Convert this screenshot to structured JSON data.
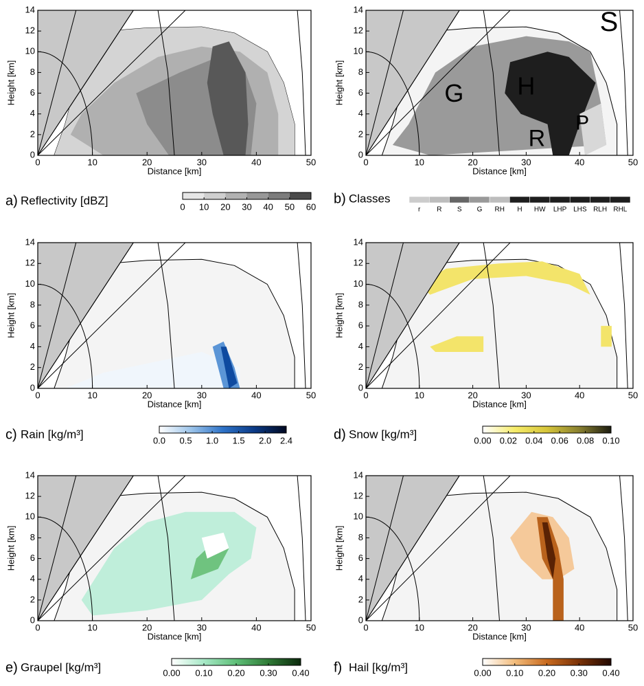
{
  "chart_data": [
    {
      "type": "contour",
      "label": "a)",
      "title": "Reflectivity [dBZ]",
      "xlabel": "Distance [km]",
      "ylabel": "Height [km]",
      "xlim": [
        0,
        50
      ],
      "xticks": [
        0,
        10,
        20,
        30,
        40,
        50
      ],
      "ylim": [
        0,
        14
      ],
      "yticks": [
        0,
        2,
        4,
        6,
        8,
        10,
        12,
        14
      ],
      "colorbar": {
        "discrete": true,
        "lim": [
          0,
          60
        ],
        "ticks": [
          0,
          10,
          20,
          30,
          40,
          50,
          60
        ],
        "colors": [
          "#e6e6e6",
          "#cfcfcf",
          "#b2b2b2",
          "#989898",
          "#7c7c7c",
          "#4a4a4a"
        ]
      }
    },
    {
      "type": "contour",
      "label": "b)",
      "title": "Classes",
      "xlabel": "Distance [km]",
      "ylabel": "Height [km]",
      "xlim": [
        0,
        50
      ],
      "xticks": [
        0,
        10,
        20,
        30,
        40,
        50
      ],
      "ylim": [
        0,
        14
      ],
      "yticks": [
        0,
        2,
        4,
        6,
        8,
        10,
        12,
        14
      ],
      "annotations": [
        "S",
        "G",
        "H",
        "R",
        "P"
      ],
      "colorbar": {
        "categories": [
          "r",
          "R",
          "S",
          "G",
          "RH",
          "H",
          "HW",
          "LHP",
          "LHS",
          "RLH",
          "RHL"
        ],
        "colors": [
          "#cccccc",
          "#bdbdbd",
          "#666666",
          "#999999",
          "#bdbdbd",
          "#1e1e1e",
          "#1e1e1e",
          "#1e1e1e",
          "#1e1e1e",
          "#1e1e1e",
          "#1e1e1e"
        ]
      }
    },
    {
      "type": "contour",
      "label": "c)",
      "title": "Rain [kg/m³]",
      "xlabel": "Distance [km]",
      "ylabel": "Height [km]",
      "xlim": [
        0,
        50
      ],
      "xticks": [
        0,
        10,
        20,
        30,
        40,
        50
      ],
      "ylim": [
        0,
        14
      ],
      "yticks": [
        0,
        2,
        4,
        6,
        8,
        10,
        12,
        14
      ],
      "colorbar": {
        "lim": [
          0,
          2.4
        ],
        "ticks": [
          {
            "value": 0,
            "label": "0.0"
          },
          {
            "value": 0.5,
            "label": "0.5"
          },
          {
            "value": 1,
            "label": "1.0"
          },
          {
            "value": 1.5,
            "label": "1.5"
          },
          {
            "value": 2,
            "label": "2.0"
          },
          2.4
        ],
        "colors": [
          "#ffffff",
          "#9cc4ea",
          "#2e73c8",
          "#0b3a86",
          "#000820"
        ]
      }
    },
    {
      "type": "contour",
      "label": "d)",
      "title": "Snow [kg/m³]",
      "xlabel": "Distance [km]",
      "ylabel": "Height [km]",
      "xlim": [
        0,
        50
      ],
      "xticks": [
        0,
        10,
        20,
        30,
        40,
        50
      ],
      "ylim": [
        0,
        14
      ],
      "yticks": [
        0,
        2,
        4,
        6,
        8,
        10,
        12,
        14
      ],
      "colorbar": {
        "lim": [
          0,
          0.1
        ],
        "ticks": [
          {
            "value": 0,
            "label": "0.00"
          },
          {
            "value": 0.02,
            "label": "0.02"
          },
          {
            "value": 0.04,
            "label": "0.04"
          },
          {
            "value": 0.06,
            "label": "0.06"
          },
          {
            "value": 0.08,
            "label": "0.08"
          },
          {
            "value": 0.1,
            "label": "0.10"
          }
        ],
        "colors": [
          "#ffffff",
          "#f6ec6a",
          "#d6c53a",
          "#8a8130",
          "#1c1c10"
        ]
      }
    },
    {
      "type": "contour",
      "label": "e)",
      "title": "Graupel [kg/m³]",
      "xlabel": "Distance [km]",
      "ylabel": "Height [km]",
      "xlim": [
        0,
        50
      ],
      "xticks": [
        0,
        10,
        20,
        30,
        40,
        50
      ],
      "ylim": [
        0,
        14
      ],
      "yticks": [
        0,
        2,
        4,
        6,
        8,
        10,
        12,
        14
      ],
      "colorbar": {
        "lim": [
          0,
          0.4
        ],
        "ticks": [
          {
            "value": 0,
            "label": "0.00"
          },
          {
            "value": 0.1,
            "label": "0.10"
          },
          {
            "value": 0.2,
            "label": "0.20"
          },
          {
            "value": 0.3,
            "label": "0.30"
          },
          {
            "value": 0.4,
            "label": "0.40"
          }
        ],
        "colors": [
          "#ffffff",
          "#a6e8c6",
          "#5fbf78",
          "#2f7a36",
          "#0b2a0c"
        ]
      }
    },
    {
      "type": "contour",
      "label": "f)",
      "title": "Hail [kg/m³]",
      "xlabel": "Distance [km]",
      "ylabel": "Height [km]",
      "xlim": [
        0,
        50
      ],
      "xticks": [
        0,
        10,
        20,
        30,
        40,
        50
      ],
      "ylim": [
        0,
        14
      ],
      "yticks": [
        0,
        2,
        4,
        6,
        8,
        10,
        12,
        14
      ],
      "colorbar": {
        "lim": [
          0,
          0.4
        ],
        "ticks": [
          {
            "value": 0,
            "label": "0.00"
          },
          {
            "value": 0.1,
            "label": "0.10"
          },
          {
            "value": 0.2,
            "label": "0.20"
          },
          {
            "value": 0.3,
            "label": "0.30"
          },
          {
            "value": 0.4,
            "label": "0.40"
          }
        ],
        "colors": [
          "#ffffff",
          "#f2bc7c",
          "#c86a1e",
          "#7a3208",
          "#220800"
        ]
      }
    }
  ]
}
